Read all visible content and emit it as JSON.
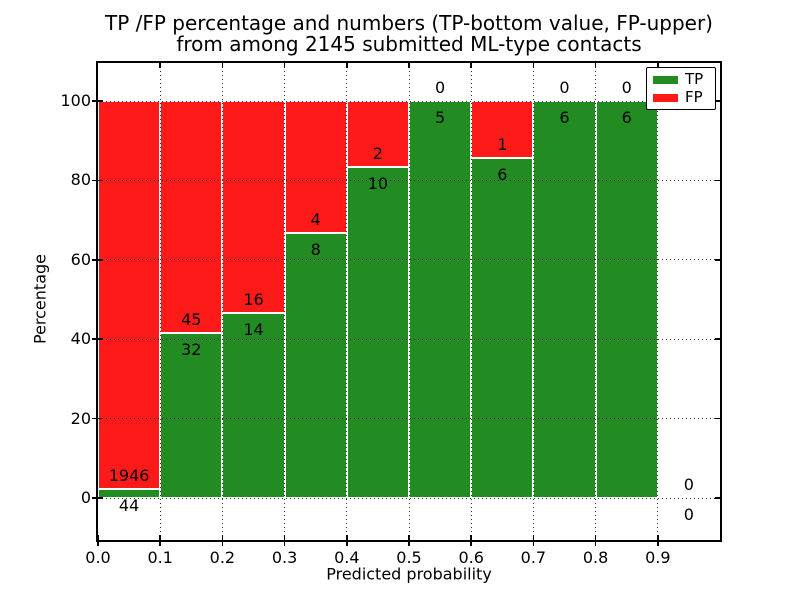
{
  "title": {
    "line1": "TP /FP percentage and numbers (TP-bottom value, FP-upper)",
    "line2": "from among 2145 submitted ML-type contacts"
  },
  "axes": {
    "xlabel": "Predicted probability",
    "ylabel": "Percentage",
    "xtick_labels": [
      "0.0",
      "0.1",
      "0.2",
      "0.3",
      "0.4",
      "0.5",
      "0.6",
      "0.7",
      "0.8",
      "0.9"
    ],
    "ytick_values": [
      0,
      20,
      40,
      60,
      80,
      100
    ],
    "xlim": [
      0.0,
      1.0
    ],
    "ylim": [
      -10.6,
      109.6
    ],
    "grid_style": "dotted-black"
  },
  "legend": {
    "position": "upper-right",
    "items": [
      {
        "label": "TP",
        "color": "#228b22"
      },
      {
        "label": "FP",
        "color": "#ff1a1a"
      }
    ]
  },
  "chart_data": {
    "type": "bar",
    "subtype": "stacked-100-percent",
    "title": "TP /FP percentage and numbers (TP-bottom value, FP-upper) from among 2145 submitted ML-type contacts",
    "xlabel": "Predicted probability",
    "ylabel": "Percentage",
    "total_contacts": 2145,
    "bin_width": 0.1,
    "bin_starts": [
      0.0,
      0.1,
      0.2,
      0.3,
      0.4,
      0.5,
      0.6,
      0.7,
      0.8,
      0.9
    ],
    "series": [
      {
        "name": "TP",
        "stack": "bottom",
        "color": "#228b22",
        "counts": [
          44,
          32,
          14,
          8,
          10,
          5,
          6,
          6,
          6,
          0
        ]
      },
      {
        "name": "FP",
        "stack": "top",
        "color": "#ff1a1a",
        "counts": [
          1946,
          45,
          16,
          4,
          2,
          0,
          1,
          0,
          0,
          0
        ]
      }
    ],
    "tp_percent": [
      2.2,
      41.6,
      46.7,
      66.7,
      83.3,
      100.0,
      85.7,
      100.0,
      100.0,
      null
    ],
    "ylim": [
      -10.6,
      109.6
    ],
    "yticks": [
      0,
      20,
      40,
      60,
      80,
      100
    ],
    "legend_position": "upper right",
    "grid": true
  }
}
